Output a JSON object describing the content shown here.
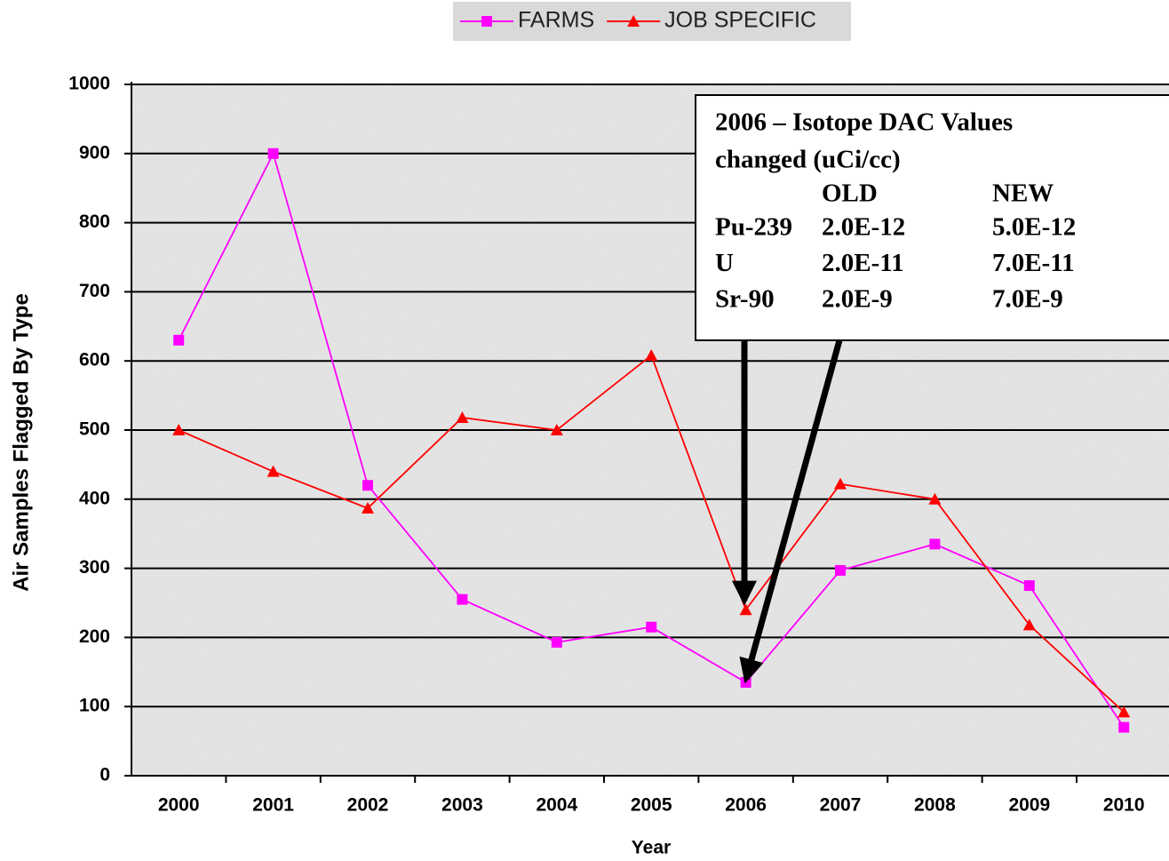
{
  "chart_data": {
    "type": "line",
    "x_label": "Year",
    "y_label": "Air Samples Flagged By Type",
    "categories": [
      "2000",
      "2001",
      "2002",
      "2003",
      "2004",
      "2005",
      "2006",
      "2007",
      "2008",
      "2009",
      "2010"
    ],
    "series": [
      {
        "name": "FARMS",
        "color": "#ff00ff",
        "marker": "square",
        "values": [
          630,
          900,
          420,
          255,
          193,
          215,
          135,
          297,
          335,
          275,
          70
        ]
      },
      {
        "name": "JOB SPECIFIC",
        "color": "#ff0000",
        "marker": "triangle",
        "values": [
          500,
          440,
          387,
          518,
          500,
          608,
          240,
          422,
          400,
          218,
          92
        ]
      }
    ],
    "ylim": [
      0,
      1000
    ],
    "yticks": [
      0,
      100,
      200,
      300,
      400,
      500,
      600,
      700,
      800,
      900,
      1000
    ],
    "grid": true,
    "legend": "top",
    "annotation": {
      "title_lines": [
        "2006 – Isotope DAC Values",
        "changed (uCi/cc)"
      ],
      "header": {
        "old": "OLD",
        "new": "NEW"
      },
      "rows": [
        [
          "Pu-239",
          "2.0E-12",
          "5.0E-12"
        ],
        [
          "U",
          "2.0E-11",
          "7.0E-11"
        ],
        [
          "Sr-90",
          "2.0E-9",
          "7.0E-9"
        ]
      ]
    }
  }
}
